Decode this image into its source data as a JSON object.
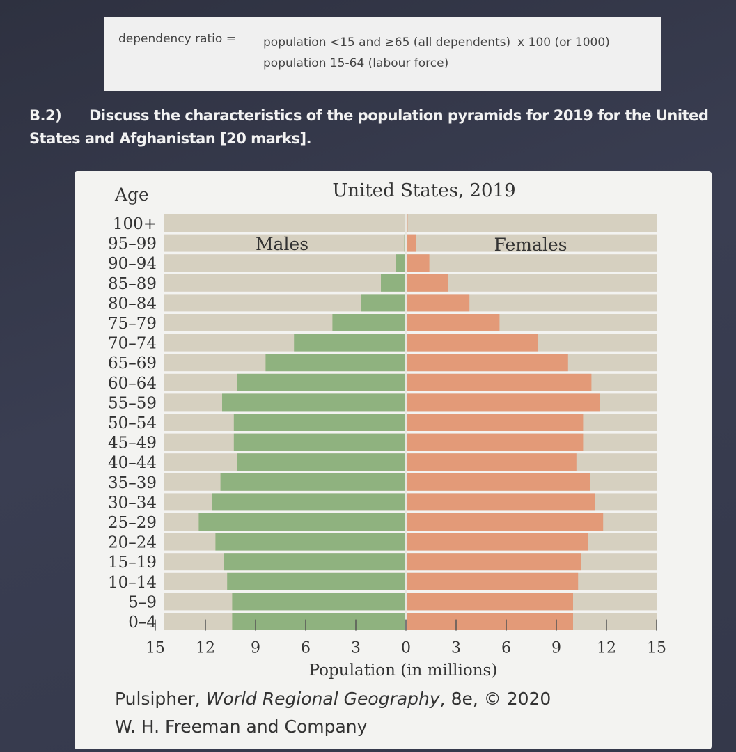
{
  "formula": {
    "lhs": "dependency ratio =",
    "numerator": "population <15 and ≥65 (all dependents)",
    "multiplier": "x 100 (or 1000)",
    "denominator": "population 15-64 (labour force)"
  },
  "question": {
    "number": "B.2)",
    "text": "Discuss the characteristics of the population pyramids for 2019 for the United States and Afghanistan [20 marks]."
  },
  "credit": {
    "author": "Pulsipher, ",
    "book": "World Regional Geography",
    "rest": ", 8e, © 2020",
    "publisher": "W. H. Freeman and Company"
  },
  "colors": {
    "males": "#8fb27f",
    "females": "#e39a78",
    "track": "#d6d0c0"
  },
  "chart_data": {
    "type": "bar",
    "title": "United States, 2019",
    "yaxis_title": "Age",
    "xlabel": "Population (in millions)",
    "male_label": "Males",
    "female_label": "Females",
    "xlim": [
      -15,
      15
    ],
    "x_ticks": [
      "15",
      "12",
      "9",
      "6",
      "3",
      "0",
      "3",
      "6",
      "9",
      "12",
      "15"
    ],
    "categories": [
      "100+",
      "95–99",
      "90–94",
      "85–89",
      "80–84",
      "75–79",
      "70–74",
      "65–69",
      "60–64",
      "55–59",
      "50–54",
      "45–49",
      "40–44",
      "35–39",
      "30–34",
      "25–29",
      "20–24",
      "15–19",
      "10–14",
      "5–9",
      "0–4"
    ],
    "series": [
      {
        "name": "Males",
        "values": [
          0.0,
          0.1,
          0.6,
          1.5,
          2.7,
          4.4,
          6.7,
          8.4,
          10.1,
          11.0,
          10.3,
          10.3,
          10.1,
          11.1,
          11.6,
          12.4,
          11.4,
          10.9,
          10.7,
          10.4,
          10.4
        ]
      },
      {
        "name": "Females",
        "values": [
          0.1,
          0.6,
          1.4,
          2.5,
          3.8,
          5.6,
          7.9,
          9.7,
          11.1,
          11.6,
          10.6,
          10.6,
          10.2,
          11.0,
          11.3,
          11.8,
          10.9,
          10.5,
          10.3,
          10.0,
          10.0
        ]
      }
    ]
  }
}
